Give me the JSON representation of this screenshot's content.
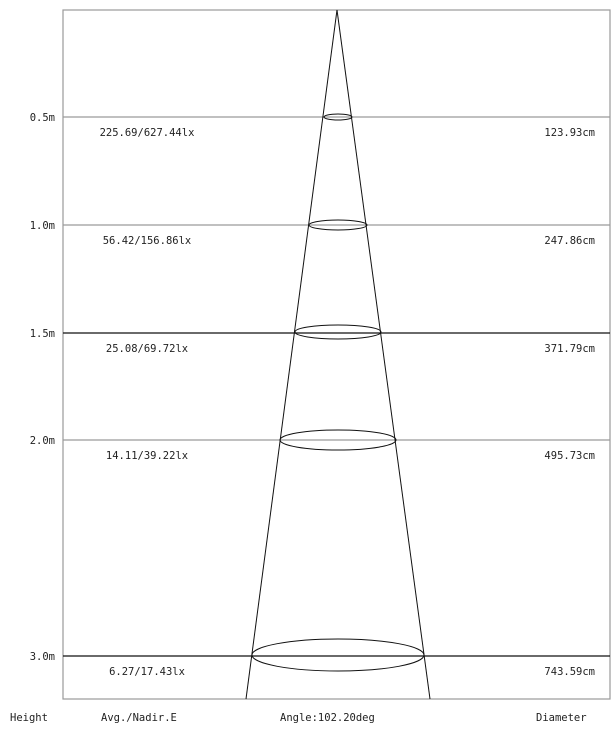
{
  "diagram": {
    "type": "beam-cone",
    "levels": [
      {
        "height": "0.5m",
        "illuminance": "225.69/627.44lx",
        "diameter": "123.93cm",
        "value": 0.5
      },
      {
        "height": "1.0m",
        "illuminance": "56.42/156.86lx",
        "diameter": "247.86cm",
        "value": 1.0
      },
      {
        "height": "1.5m",
        "illuminance": "25.08/69.72lx",
        "diameter": "371.79cm",
        "value": 1.5
      },
      {
        "height": "2.0m",
        "illuminance": "14.11/39.22lx",
        "diameter": "495.73cm",
        "value": 2.0
      },
      {
        "height": "3.0m",
        "illuminance": "6.27/17.43lx",
        "diameter": "743.59cm",
        "value": 3.0
      }
    ],
    "footer": {
      "height_label": "Height",
      "illuminance_label": "Avg./Nadir.E",
      "angle_label": "Angle:102.20deg",
      "diameter_label": "Diameter"
    }
  }
}
